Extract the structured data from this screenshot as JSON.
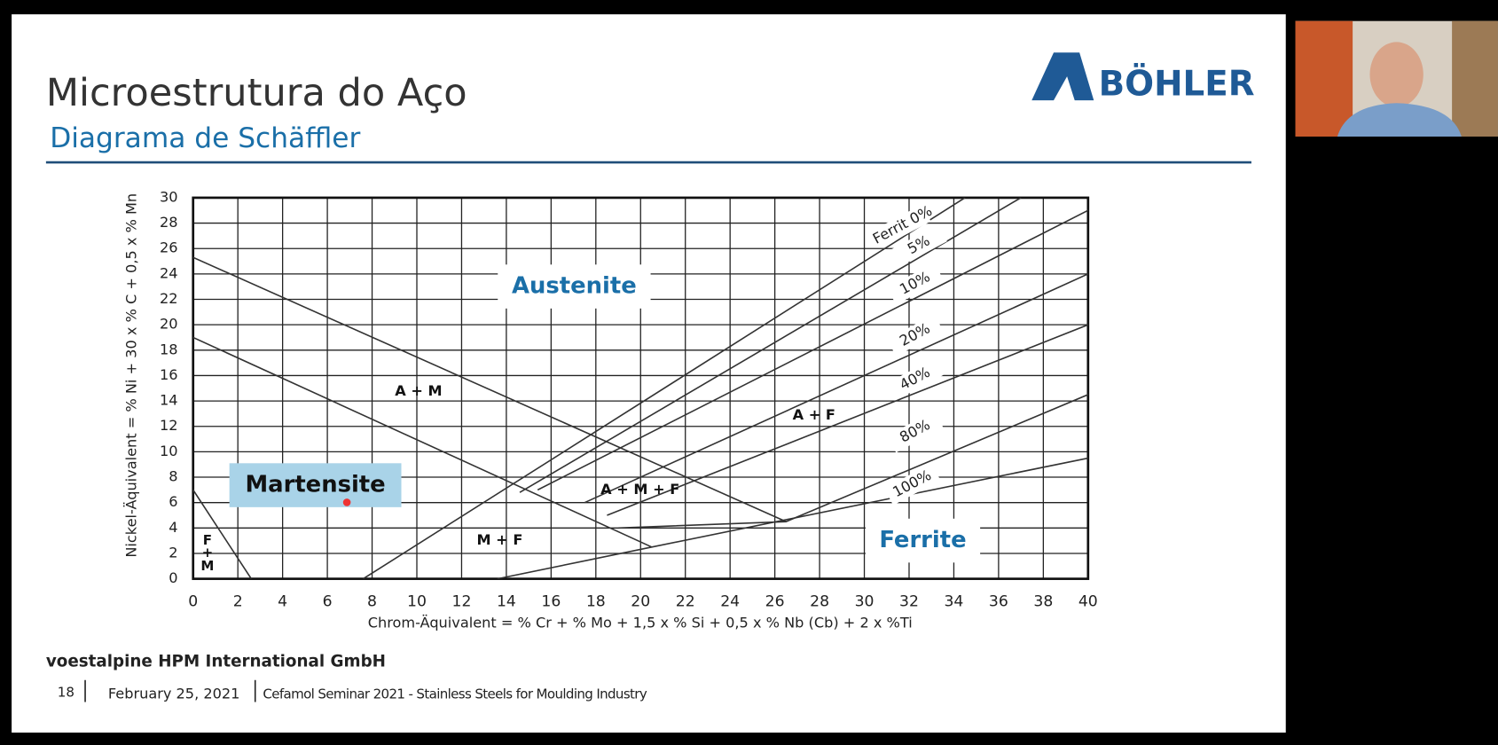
{
  "slide": {
    "title": "Microestrutura do Aço",
    "subtitle": "Diagrama de Schäffler",
    "logo": "BÖHLER",
    "footer": {
      "company": "voestalpine HPM International GmbH",
      "page": "18",
      "date": "February 25, 2021",
      "event": "Cefamol Seminar 2021 - Stainless Steels for Moulding Industry"
    }
  },
  "chart_data": {
    "type": "line",
    "x_label": "Chrom-Äquivalent = % Cr + % Mo + 1,5 x % Si + 0,5 x % Nb (Cb) + 2 x %Ti",
    "y_label": "Nickel-Äquivalent = % Ni + 30 x % C + 0,5 x % Mn",
    "xlim": [
      0,
      40
    ],
    "ylim": [
      0,
      30
    ],
    "xticks": [
      0,
      2,
      4,
      6,
      8,
      10,
      12,
      14,
      16,
      18,
      20,
      22,
      24,
      26,
      28,
      30,
      32,
      34,
      36,
      38,
      40
    ],
    "yticks": [
      0,
      2,
      4,
      6,
      8,
      10,
      12,
      14,
      16,
      18,
      20,
      22,
      24,
      26,
      28,
      30
    ],
    "grid": true,
    "series": [
      {
        "name": "Ferrit 0%",
        "color": "#333333",
        "x": [
          7.6,
          34.5
        ],
        "values": [
          0,
          30
        ]
      },
      {
        "name": "5%",
        "color": "#333333",
        "x": [
          14.6,
          37
        ],
        "values": [
          6.8,
          30
        ]
      },
      {
        "name": "10%",
        "color": "#333333",
        "x": [
          15.4,
          40
        ],
        "values": [
          7,
          29
        ]
      },
      {
        "name": "20%",
        "color": "#333333",
        "x": [
          17.5,
          40
        ],
        "values": [
          6,
          24
        ]
      },
      {
        "name": "40%",
        "color": "#333333",
        "x": [
          18.5,
          40
        ],
        "values": [
          5,
          20
        ]
      },
      {
        "name": "80%",
        "color": "#333333",
        "x": [
          19,
          26.5,
          40
        ],
        "values": [
          4,
          4.5,
          14.5
        ]
      },
      {
        "name": "100%",
        "color": "#333333",
        "x": [
          13.6,
          20.5,
          40
        ],
        "values": [
          0,
          2.5,
          9.5
        ]
      },
      {
        "color": "#333333",
        "x": [
          0,
          26.5
        ],
        "values": [
          25.3,
          4.5
        ]
      },
      {
        "color": "#333333",
        "x": [
          0,
          20.5
        ],
        "values": [
          19,
          2.5
        ]
      },
      {
        "color": "#333333",
        "x": [
          0,
          2.6
        ],
        "values": [
          7,
          0
        ]
      }
    ],
    "annotations": [
      "Austenite",
      "A + M",
      "A + F",
      "A + M + F",
      "Martensite",
      "M + F",
      "Ferrite",
      "F",
      "+",
      "M"
    ]
  }
}
